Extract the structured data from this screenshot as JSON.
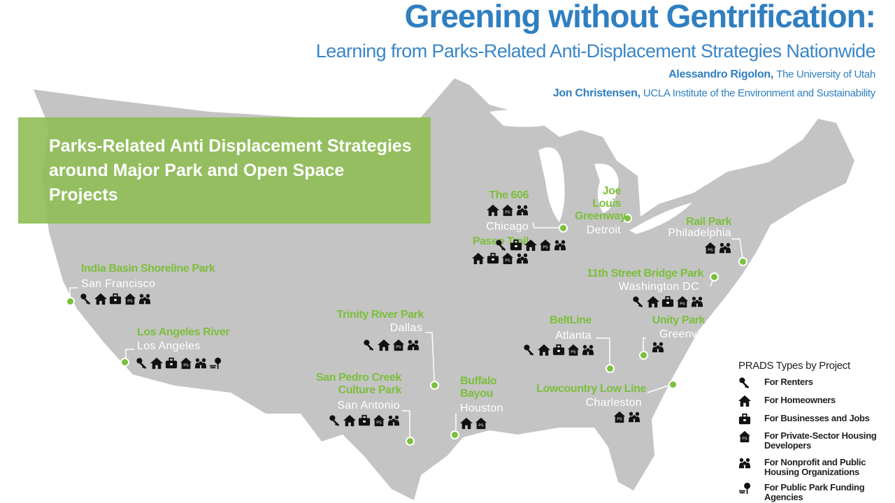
{
  "header": {
    "title": "Greening without Gentrification:",
    "subtitle": "Learning from Parks-Related Anti-Displacement Strategies Nationwide",
    "authors": [
      {
        "name": "Alessandro Rigolon,",
        "affiliation": "The University of Utah"
      },
      {
        "name": "Jon Christensen,",
        "affiliation": "UCLA Institute of the Environment and Sustainability"
      }
    ]
  },
  "panel_title": "Parks-Related Anti Displacement Strategies around Major Park and Open Space Projects",
  "sites": [
    {
      "city": "San Francisco",
      "projects": [
        "India Basin Shoreline Park"
      ]
    },
    {
      "city": "Los Angeles",
      "projects": [
        "Los Angeles River"
      ]
    },
    {
      "city": "Dallas",
      "projects": [
        "Trinity River Park"
      ]
    },
    {
      "city": "San Antonio",
      "projects": [
        "San Pedro Creek Culture Park"
      ]
    },
    {
      "city": "Houston",
      "projects": [
        "Buffalo Bayou"
      ]
    },
    {
      "city": "Chicago",
      "projects": [
        "The 606",
        "Paseo Trail"
      ]
    },
    {
      "city": "Detroit",
      "projects": [
        "Joe Louis Greenway"
      ]
    },
    {
      "city": "Philadelphia",
      "projects": [
        "Rail Park"
      ]
    },
    {
      "city": "Washington DC",
      "projects": [
        "11th Street Bridge Park"
      ]
    },
    {
      "city": "Atlanta",
      "projects": [
        "BeltLine"
      ]
    },
    {
      "city": "Greenville",
      "projects": [
        "Unity Park"
      ]
    },
    {
      "city": "Charleston",
      "projects": [
        "Lowcountry Low Line"
      ]
    }
  ],
  "legend": {
    "title": "PRADS Types by Project",
    "items": [
      "For Renters",
      "For Homeowners",
      "For Businesses and Jobs",
      "For Private-Sector Housing Developers",
      "For Nonprofit and Public Housing Organizations",
      "For Public Park Funding Agencies"
    ]
  }
}
